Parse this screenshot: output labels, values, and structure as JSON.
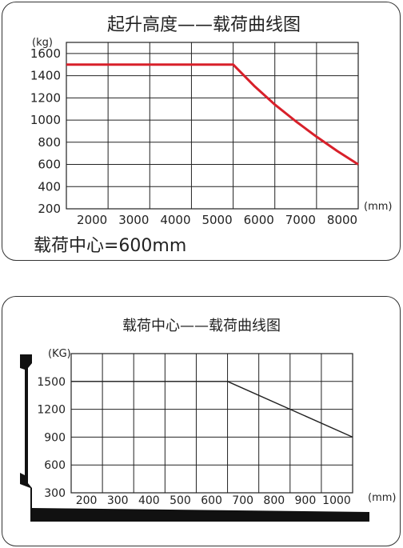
{
  "chart_data": [
    {
      "type": "line",
      "title": "起升高度——载荷曲线图",
      "ylabel": "(kg)",
      "xlabel": "(mm)",
      "note": "载荷中心=600mm",
      "x_ticks": [
        "2000",
        "3000",
        "4000",
        "5000",
        "6000",
        "7000",
        "8000"
      ],
      "y_ticks": [
        "200",
        "400",
        "600",
        "800",
        "1000",
        "1200",
        "1400",
        "1600"
      ],
      "xlim": [
        1000,
        8000
      ],
      "ylim": [
        200,
        1700
      ],
      "series": [
        {
          "color": "#d8202a",
          "x": [
            1000,
            5000,
            5500,
            6000,
            6500,
            7000,
            7500,
            8000
          ],
          "y": [
            1500,
            1500,
            1310,
            1140,
            990,
            850,
            720,
            600
          ]
        }
      ]
    },
    {
      "type": "line",
      "title": "载荷中心——载荷曲线图",
      "ylabel": "(KG)",
      "xlabel": "(mm)",
      "x_ticks": [
        "200",
        "300",
        "400",
        "500",
        "600",
        "700",
        "800",
        "900",
        "1000"
      ],
      "y_ticks": [
        "300",
        "600",
        "900",
        "1200",
        "1500"
      ],
      "xlim": [
        100,
        1000
      ],
      "ylim": [
        300,
        1800
      ],
      "series": [
        {
          "color": "#222222",
          "x": [
            100,
            600,
            1000
          ],
          "y": [
            1500,
            1500,
            900
          ]
        }
      ]
    }
  ]
}
